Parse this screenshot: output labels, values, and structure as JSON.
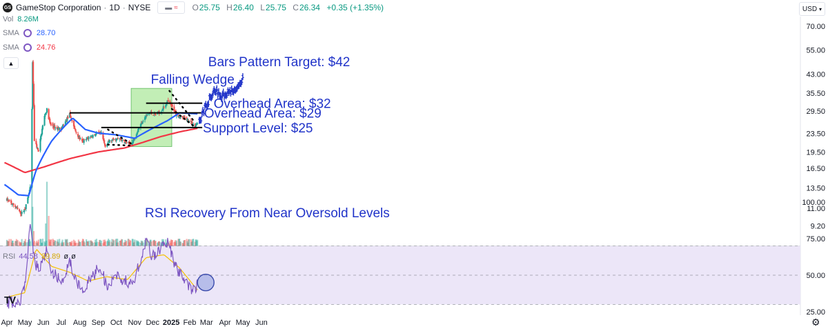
{
  "header": {
    "logo_text": "GS",
    "symbol_title": "GameStop Corporation",
    "interval": "1D",
    "exchange": "NYSE",
    "ohlc": [
      {
        "label": "O",
        "value": "25.75"
      },
      {
        "label": "H",
        "value": "26.40"
      },
      {
        "label": "L",
        "value": "25.75"
      },
      {
        "label": "C",
        "value": "26.34"
      }
    ],
    "change": "+0.35 (+1.35%)"
  },
  "indicators": {
    "volume": {
      "label": "Vol",
      "value": "8.26M"
    },
    "sma_fast": {
      "label": "SMA",
      "value": "28.70",
      "color": "#2962ff"
    },
    "sma_slow": {
      "label": "SMA",
      "value": "24.76",
      "color": "#f23645"
    },
    "rsi": {
      "label": "RSI",
      "value": "44.58",
      "ma_value": "39.89",
      "extra1": "ø",
      "extra2": "ø",
      "color": "#7e57c2",
      "ma_color": "#f5c000"
    }
  },
  "currency_button": "USD",
  "colors": {
    "up": "#26a69a",
    "down": "#ef5350",
    "sma_fast": "#2962ff",
    "sma_slow": "#f23645",
    "annotation": "#2134c9",
    "wedge_box": "#8fe07a",
    "projection": "#2134c9",
    "rsi_band": "#ece6f8"
  },
  "chart_data": {
    "type": "candlestick",
    "price_axis": {
      "scale": "log",
      "ticks": [
        "70.00",
        "55.00",
        "43.00",
        "35.50",
        "29.50",
        "23.50",
        "19.50",
        "16.50",
        "13.50",
        "11.00",
        "9.20"
      ],
      "range": [
        9.2,
        72
      ]
    },
    "time_axis": {
      "labels": [
        "Apr",
        "May",
        "Jun",
        "Jul",
        "Aug",
        "Sep",
        "Oct",
        "Nov",
        "Dec",
        "2025",
        "Feb",
        "Mar",
        "Apr",
        "May",
        "Jun"
      ]
    },
    "price_anchors": [
      {
        "date": "2024-04-01",
        "price": 12.0
      },
      {
        "date": "2024-04-15",
        "price": 11.2
      },
      {
        "date": "2024-04-25",
        "price": 10.4
      },
      {
        "date": "2024-05-02",
        "price": 11.0
      },
      {
        "date": "2024-05-10",
        "price": 13.5
      },
      {
        "date": "2024-05-13",
        "price": 30.0
      },
      {
        "date": "2024-05-14",
        "price": 48.0
      },
      {
        "date": "2024-05-17",
        "price": 22.0
      },
      {
        "date": "2024-05-24",
        "price": 19.5
      },
      {
        "date": "2024-06-03",
        "price": 28.0
      },
      {
        "date": "2024-06-07",
        "price": 30.0
      },
      {
        "date": "2024-06-12",
        "price": 26.0
      },
      {
        "date": "2024-06-20",
        "price": 25.0
      },
      {
        "date": "2024-07-01",
        "price": 24.5
      },
      {
        "date": "2024-07-15",
        "price": 28.5
      },
      {
        "date": "2024-07-25",
        "price": 24.0
      },
      {
        "date": "2024-08-05",
        "price": 21.5
      },
      {
        "date": "2024-08-15",
        "price": 22.5
      },
      {
        "date": "2024-08-30",
        "price": 23.5
      },
      {
        "date": "2024-09-06",
        "price": 23.5
      },
      {
        "date": "2024-09-12",
        "price": 20.8
      },
      {
        "date": "2024-09-20",
        "price": 21.8
      },
      {
        "date": "2024-10-05",
        "price": 22.3
      },
      {
        "date": "2024-10-20",
        "price": 21.2
      },
      {
        "date": "2024-10-28",
        "price": 21.5
      },
      {
        "date": "2024-11-05",
        "price": 24.0
      },
      {
        "date": "2024-11-15",
        "price": 27.0
      },
      {
        "date": "2024-11-25",
        "price": 29.0
      },
      {
        "date": "2024-12-05",
        "price": 28.5
      },
      {
        "date": "2024-12-15",
        "price": 29.5
      },
      {
        "date": "2024-12-26",
        "price": 32.5
      },
      {
        "date": "2025-01-02",
        "price": 31.0
      },
      {
        "date": "2025-01-10",
        "price": 28.5
      },
      {
        "date": "2025-01-20",
        "price": 27.5
      },
      {
        "date": "2025-01-31",
        "price": 27.0
      },
      {
        "date": "2025-02-10",
        "price": 25.2
      },
      {
        "date": "2025-02-14",
        "price": 26.34
      }
    ],
    "volume_anchors": [
      {
        "date": "2024-05-13",
        "value": 0.95
      },
      {
        "date": "2024-05-14",
        "value": 0.52
      },
      {
        "date": "2024-05-16",
        "value": 0.2
      },
      {
        "date": "2024-06-05",
        "value": 0.3
      },
      {
        "date": "2024-06-07",
        "value": 0.85
      },
      {
        "date": "2024-06-10",
        "value": 0.4
      }
    ],
    "sma_fast": [
      {
        "date": "2024-03-28",
        "price": 14.0
      },
      {
        "date": "2024-04-20",
        "price": 12.6
      },
      {
        "date": "2024-05-08",
        "price": 12.5
      },
      {
        "date": "2024-05-20",
        "price": 16.2
      },
      {
        "date": "2024-06-15",
        "price": 21.8
      },
      {
        "date": "2024-07-20",
        "price": 27.5
      },
      {
        "date": "2024-08-10",
        "price": 24.5
      },
      {
        "date": "2024-09-01",
        "price": 23.6
      },
      {
        "date": "2024-10-01",
        "price": 23.2
      },
      {
        "date": "2024-11-01",
        "price": 22.4
      },
      {
        "date": "2024-12-01",
        "price": 24.8
      },
      {
        "date": "2024-12-26",
        "price": 26.8
      },
      {
        "date": "2025-01-15",
        "price": 29.0
      },
      {
        "date": "2025-02-14",
        "price": 28.7
      }
    ],
    "sma_slow": [
      {
        "date": "2024-03-28",
        "price": 17.5
      },
      {
        "date": "2024-05-01",
        "price": 15.8
      },
      {
        "date": "2024-06-01",
        "price": 16.7
      },
      {
        "date": "2024-07-15",
        "price": 18.2
      },
      {
        "date": "2024-09-01",
        "price": 19.5
      },
      {
        "date": "2024-10-15",
        "price": 20.3
      },
      {
        "date": "2024-11-15",
        "price": 21.5
      },
      {
        "date": "2024-12-15",
        "price": 22.8
      },
      {
        "date": "2025-01-15",
        "price": 23.9
      },
      {
        "date": "2025-02-14",
        "price": 24.8
      }
    ],
    "horizontal_levels": [
      {
        "price": 32.0,
        "from": "2024-11-20",
        "to": "2025-02-22"
      },
      {
        "price": 29.0,
        "from": "2024-07-15",
        "to": "2025-02-22"
      },
      {
        "price": 25.0,
        "from": "2024-09-06",
        "to": "2025-02-22"
      }
    ],
    "wedges": [
      {
        "upper": [
          {
            "date": "2024-09-17",
            "price": 24.5
          },
          {
            "date": "2024-10-26",
            "price": 21.2
          }
        ],
        "lower": [
          {
            "date": "2024-09-17",
            "price": 21.0
          },
          {
            "date": "2024-10-26",
            "price": 20.8
          }
        ]
      },
      {
        "upper": [
          {
            "date": "2024-12-29",
            "price": 36.3
          },
          {
            "date": "2025-02-09",
            "price": 26.5
          }
        ],
        "lower": [
          {
            "date": "2025-01-02",
            "price": 30.2
          },
          {
            "date": "2025-02-09",
            "price": 25.2
          }
        ]
      }
    ],
    "wedge_box": {
      "from": "2024-10-26",
      "to": "2025-01-02",
      "price_low": 20.6,
      "price_high": 37.2
    },
    "projection": [
      {
        "date": "2025-02-17",
        "price": 26.4
      },
      {
        "date": "2025-02-24",
        "price": 29.6
      },
      {
        "date": "2025-03-05",
        "price": 32.8
      },
      {
        "date": "2025-03-15",
        "price": 37.0
      },
      {
        "date": "2025-03-25",
        "price": 34.2
      },
      {
        "date": "2025-04-05",
        "price": 35.8
      },
      {
        "date": "2025-04-15",
        "price": 36.5
      },
      {
        "date": "2025-04-25",
        "price": 39.0
      },
      {
        "date": "2025-05-01",
        "price": 41.0
      }
    ],
    "annotations": [
      {
        "text": "Falling Wedge",
        "date": "2024-11-28",
        "price": 41.0
      },
      {
        "text": "Bars Pattern Target: $42",
        "date": "2025-03-04",
        "price": 49.0
      },
      {
        "text": "Overhead Area: $32",
        "date": "2025-03-13",
        "price": 32.0
      },
      {
        "text": "Overhead Area: $29",
        "date": "2025-02-25",
        "price": 29.0
      },
      {
        "text": "Support Level: $25",
        "date": "2025-02-23",
        "price": 25.0
      },
      {
        "text": "RSI Recovery From Near Oversold Levels",
        "date": "2024-11-18",
        "value": 93.0
      }
    ],
    "rsi_panel": {
      "ticks": [
        "100.00",
        "75.00",
        "50.00",
        "25.00"
      ],
      "band": [
        30,
        70
      ],
      "levels": [
        30,
        50,
        70
      ],
      "rsi_anchors": [
        {
          "date": "2024-04-01",
          "value": 32
        },
        {
          "date": "2024-04-20",
          "value": 30
        },
        {
          "date": "2024-05-01",
          "value": 42
        },
        {
          "date": "2024-05-10",
          "value": 88
        },
        {
          "date": "2024-05-16",
          "value": 62
        },
        {
          "date": "2024-05-25",
          "value": 52
        },
        {
          "date": "2024-06-07",
          "value": 68
        },
        {
          "date": "2024-06-14",
          "value": 52
        },
        {
          "date": "2024-07-02",
          "value": 47
        },
        {
          "date": "2024-07-15",
          "value": 60
        },
        {
          "date": "2024-07-25",
          "value": 45
        },
        {
          "date": "2024-08-07",
          "value": 38
        },
        {
          "date": "2024-08-20",
          "value": 48
        },
        {
          "date": "2024-09-05",
          "value": 56
        },
        {
          "date": "2024-09-15",
          "value": 42
        },
        {
          "date": "2024-09-30",
          "value": 50
        },
        {
          "date": "2024-10-15",
          "value": 46
        },
        {
          "date": "2024-10-28",
          "value": 44
        },
        {
          "date": "2024-11-10",
          "value": 60
        },
        {
          "date": "2024-11-22",
          "value": 76
        },
        {
          "date": "2024-11-28",
          "value": 62
        },
        {
          "date": "2024-12-10",
          "value": 66
        },
        {
          "date": "2024-12-26",
          "value": 72
        },
        {
          "date": "2025-01-08",
          "value": 56
        },
        {
          "date": "2025-01-20",
          "value": 50
        },
        {
          "date": "2025-02-05",
          "value": 38
        },
        {
          "date": "2025-02-14",
          "value": 44
        }
      ],
      "rsi_ma_anchors": [
        {
          "date": "2024-04-01",
          "value": 35
        },
        {
          "date": "2024-05-01",
          "value": 38
        },
        {
          "date": "2024-05-20",
          "value": 68
        },
        {
          "date": "2024-06-15",
          "value": 56
        },
        {
          "date": "2024-07-15",
          "value": 52
        },
        {
          "date": "2024-08-15",
          "value": 46
        },
        {
          "date": "2024-09-15",
          "value": 49
        },
        {
          "date": "2024-10-20",
          "value": 47
        },
        {
          "date": "2024-11-20",
          "value": 62
        },
        {
          "date": "2024-12-20",
          "value": 64
        },
        {
          "date": "2025-01-15",
          "value": 55
        },
        {
          "date": "2025-02-14",
          "value": 39.89
        }
      ],
      "highlight": {
        "date": "2025-02-14",
        "value": 45
      }
    }
  }
}
